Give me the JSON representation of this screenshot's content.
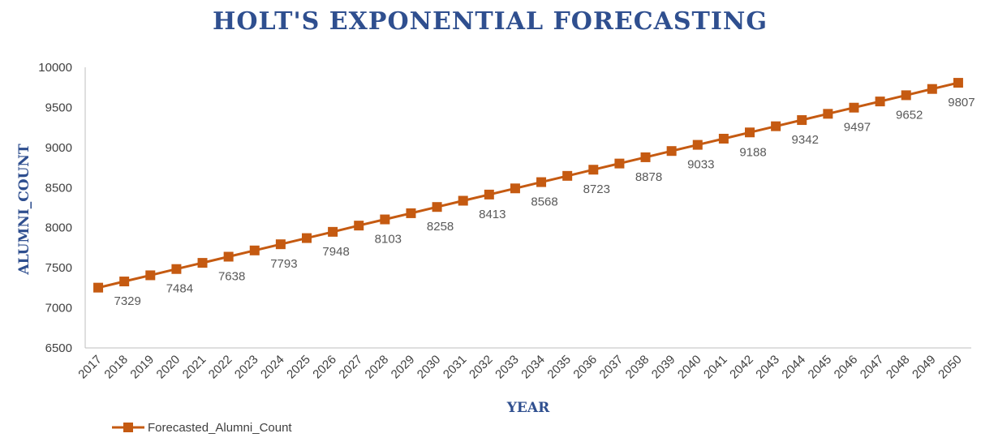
{
  "chart_data": {
    "type": "line",
    "title": "HOLT'S EXPONENTIAL FORECASTING",
    "xlabel": "YEAR",
    "ylabel": "ALUMNI_COUNT",
    "ylim": [
      6500,
      10000
    ],
    "yticks": [
      "6500",
      "7000",
      "7500",
      "8000",
      "8500",
      "9000",
      "9500",
      "10000"
    ],
    "categories": [
      "2017",
      "2018",
      "2019",
      "2020",
      "2021",
      "2022",
      "2023",
      "2024",
      "2025",
      "2026",
      "2027",
      "2028",
      "2029",
      "2030",
      "2031",
      "2032",
      "2033",
      "2034",
      "2035",
      "2036",
      "2037",
      "2038",
      "2039",
      "2040",
      "2041",
      "2042",
      "2043",
      "2044",
      "2045",
      "2046",
      "2047",
      "2048",
      "2049",
      "2050"
    ],
    "series": [
      {
        "name": "Forecasted_Alumni_Count",
        "color": "#C55A11",
        "marker": "square",
        "values": [
          7252,
          7329,
          7406,
          7484,
          7561,
          7638,
          7716,
          7793,
          7870,
          7948,
          8026,
          8103,
          8180,
          8258,
          8336,
          8413,
          8490,
          8568,
          8646,
          8723,
          8800,
          8878,
          8956,
          9033,
          9110,
          9188,
          9265,
          9342,
          9420,
          9497,
          9574,
          9652,
          9730,
          9807
        ]
      }
    ],
    "data_labels": [
      {
        "index": 1,
        "text": "7329"
      },
      {
        "index": 3,
        "text": "7484"
      },
      {
        "index": 5,
        "text": "7638"
      },
      {
        "index": 7,
        "text": "7793"
      },
      {
        "index": 9,
        "text": "7948"
      },
      {
        "index": 11,
        "text": "8103"
      },
      {
        "index": 13,
        "text": "8258"
      },
      {
        "index": 15,
        "text": "8413"
      },
      {
        "index": 17,
        "text": "8568"
      },
      {
        "index": 19,
        "text": "8723"
      },
      {
        "index": 21,
        "text": "8878"
      },
      {
        "index": 23,
        "text": "9033"
      },
      {
        "index": 25,
        "text": "9188"
      },
      {
        "index": 27,
        "text": "9342"
      },
      {
        "index": 29,
        "text": "9497"
      },
      {
        "index": 31,
        "text": "9652"
      },
      {
        "index": 33,
        "text": "9807"
      }
    ],
    "grid": false,
    "legend_position": "bottom-left"
  }
}
